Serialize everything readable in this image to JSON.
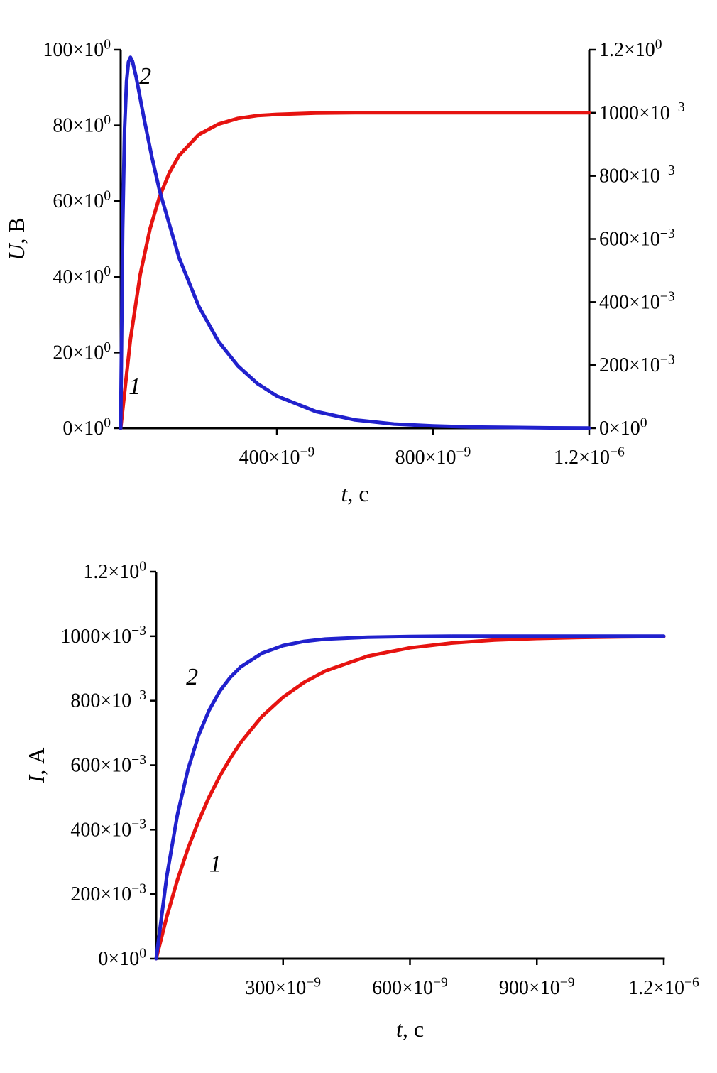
{
  "colors": {
    "curve1_red": "#e61310",
    "curve2_blue": "#2121cd",
    "axis": "#000000"
  },
  "chart_data": [
    {
      "type": "line",
      "title": "",
      "xlabel": "t, с",
      "ylabel": "U, В",
      "xlim": [
        0,
        1.2e-06
      ],
      "ylim": [
        0,
        100
      ],
      "ylim_right": [
        0,
        1.2
      ],
      "grid": false,
      "legend": "none",
      "x_ticks": [
        {
          "v": 4e-07,
          "label": "400×10^−9"
        },
        {
          "v": 8e-07,
          "label": "800×10^−9"
        },
        {
          "v": 1.2e-06,
          "label": "1.2×10^−6"
        }
      ],
      "y_ticks": [
        {
          "v": 0,
          "label": "0×10^0"
        },
        {
          "v": 20,
          "label": "20×10^0"
        },
        {
          "v": 40,
          "label": "40×10^0"
        },
        {
          "v": 60,
          "label": "60×10^0"
        },
        {
          "v": 80,
          "label": "80×10^0"
        },
        {
          "v": 100,
          "label": "100×10^0"
        }
      ],
      "y_ticks_right": [
        {
          "v": 0,
          "label": "0×10^0"
        },
        {
          "v": 0.2,
          "label": "200×10^−3"
        },
        {
          "v": 0.4,
          "label": "400×10^−3"
        },
        {
          "v": 0.6,
          "label": "600×10^−3"
        },
        {
          "v": 0.8,
          "label": "800×10^−3"
        },
        {
          "v": 1.0,
          "label": "1000×10^−3"
        },
        {
          "v": 1.2,
          "label": "1.2×10^0"
        }
      ],
      "series": [
        {
          "name": "1",
          "color": "#e61310",
          "axis": "right",
          "x": [
            0,
            2.5e-08,
            5e-08,
            7.5e-08,
            1e-07,
            1.25e-07,
            1.5e-07,
            2e-07,
            2.5e-07,
            3e-07,
            3.5e-07,
            4e-07,
            5e-07,
            6e-07,
            7e-07,
            8e-07,
            9e-07,
            1e-06,
            1.1e-06,
            1.2e-06
          ],
          "y": [
            0,
            0.283,
            0.487,
            0.632,
            0.736,
            0.811,
            0.865,
            0.931,
            0.964,
            0.982,
            0.991,
            0.995,
            0.999,
            1.0,
            1.0,
            1.0,
            1.0,
            1.0,
            1.0,
            1.0
          ]
        },
        {
          "name": "2",
          "color": "#2121cd",
          "axis": "left",
          "x": [
            0,
            5e-09,
            1e-08,
            1.5e-08,
            2e-08,
            2.5e-08,
            3e-08,
            4e-08,
            6e-08,
            8e-08,
            1e-07,
            1.5e-07,
            2e-07,
            2.5e-07,
            3e-07,
            3.5e-07,
            4e-07,
            5e-07,
            6e-07,
            7e-07,
            8e-07,
            9e-07,
            1e-06,
            1.1e-06,
            1.2e-06
          ],
          "y": [
            0,
            52.7,
            79.2,
            91.7,
            96.8,
            98.0,
            97.0,
            92.6,
            81.7,
            71.6,
            62.6,
            44.9,
            32.2,
            23.0,
            16.5,
            11.8,
            8.5,
            4.4,
            2.2,
            1.1,
            0.6,
            0.3,
            0.2,
            0.1,
            0.05
          ]
        }
      ],
      "annotations": [
        {
          "text": "2",
          "x": 6.3e-08,
          "y": 91,
          "axis": "left"
        },
        {
          "text": "1",
          "x": 3.6e-08,
          "y": 9,
          "axis": "left"
        }
      ]
    },
    {
      "type": "line",
      "title": "",
      "xlabel": "t, с",
      "ylabel": "I, А",
      "xlim": [
        0,
        1.2e-06
      ],
      "ylim": [
        0,
        1.2
      ],
      "grid": false,
      "legend": "none",
      "x_ticks": [
        {
          "v": 3e-07,
          "label": "300×10^−9"
        },
        {
          "v": 6e-07,
          "label": "600×10^−9"
        },
        {
          "v": 9e-07,
          "label": "900×10^−9"
        },
        {
          "v": 1.2e-06,
          "label": "1.2×10^−6"
        }
      ],
      "y_ticks": [
        {
          "v": 0,
          "label": "0×10^0"
        },
        {
          "v": 0.2,
          "label": "200×10^−3"
        },
        {
          "v": 0.4,
          "label": "400×10^−3"
        },
        {
          "v": 0.6,
          "label": "600×10^−3"
        },
        {
          "v": 0.8,
          "label": "800×10^−3"
        },
        {
          "v": 1.0,
          "label": "1000×10^−3"
        },
        {
          "v": 1.2,
          "label": "1.2×10^0"
        }
      ],
      "series": [
        {
          "name": "1",
          "color": "#e61310",
          "axis": "left",
          "x": [
            0,
            2.5e-08,
            5e-08,
            7.5e-08,
            1e-07,
            1.25e-07,
            1.5e-07,
            1.75e-07,
            2e-07,
            2.5e-07,
            3e-07,
            3.5e-07,
            4e-07,
            5e-07,
            6e-07,
            7e-07,
            8e-07,
            9e-07,
            1e-06,
            1.1e-06,
            1.2e-06
          ],
          "y": [
            0,
            0.13,
            0.243,
            0.341,
            0.426,
            0.501,
            0.565,
            0.621,
            0.671,
            0.751,
            0.811,
            0.857,
            0.892,
            0.938,
            0.964,
            0.979,
            0.988,
            0.993,
            0.996,
            0.998,
            0.999
          ]
        },
        {
          "name": "2",
          "color": "#2121cd",
          "axis": "left",
          "x": [
            0,
            2.5e-08,
            5e-08,
            7.5e-08,
            1e-07,
            1.25e-07,
            1.5e-07,
            1.75e-07,
            2e-07,
            2.5e-07,
            3e-07,
            3.5e-07,
            4e-07,
            5e-07,
            6e-07,
            7e-07,
            8e-07,
            9e-07,
            1e-06,
            1.1e-06,
            1.2e-06
          ],
          "y": [
            0,
            0.255,
            0.445,
            0.586,
            0.692,
            0.77,
            0.829,
            0.872,
            0.905,
            0.947,
            0.971,
            0.984,
            0.991,
            0.997,
            0.999,
            1.0,
            1.0,
            1.0,
            1.0,
            1.0,
            1.0
          ]
        }
      ],
      "annotations": [
        {
          "text": "2",
          "x": 8.5e-08,
          "y": 0.85,
          "axis": "left"
        },
        {
          "text": "1",
          "x": 1.4e-07,
          "y": 0.27,
          "axis": "left"
        }
      ]
    }
  ]
}
